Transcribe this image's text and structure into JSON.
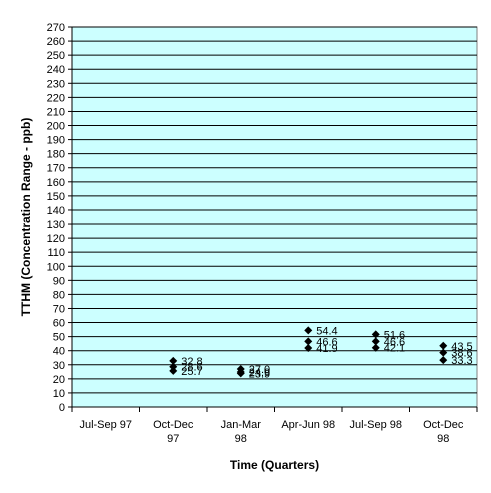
{
  "chart_data": {
    "type": "scatter",
    "title": "",
    "xlabel": "Time (Quarters)",
    "ylabel": "TTHM (Concentration Range - ppb)",
    "ylim": [
      0,
      270
    ],
    "ytick_step": 10,
    "grid": true,
    "legend": "none",
    "plot_background": "#ccffff",
    "gridline_color": "#000000",
    "marker": "diamond",
    "marker_color": "#000000",
    "categories": [
      {
        "label": "Jul-Sep 97",
        "label_line2": ""
      },
      {
        "label": "Oct-Dec",
        "label_line2": "97"
      },
      {
        "label": "Jan-Mar",
        "label_line2": "98"
      },
      {
        "label": "Apr-Jun 98",
        "label_line2": ""
      },
      {
        "label": "Jul-Sep 98",
        "label_line2": ""
      },
      {
        "label": "Oct-Dec",
        "label_line2": "98"
      }
    ],
    "points": [
      {
        "x": 1,
        "y": 32.8,
        "label": "32.8"
      },
      {
        "x": 1,
        "y": 28.6,
        "label": "28.6"
      },
      {
        "x": 1,
        "y": 25.7,
        "label": "25.7"
      },
      {
        "x": 2,
        "y": 27.0,
        "label": "27.0"
      },
      {
        "x": 2,
        "y": 24.9,
        "label": "24.9"
      },
      {
        "x": 2,
        "y": 23.9,
        "label": "23.9"
      },
      {
        "x": 3,
        "y": 54.4,
        "label": "54.4"
      },
      {
        "x": 3,
        "y": 46.6,
        "label": "46.6"
      },
      {
        "x": 3,
        "y": 41.9,
        "label": "41.9"
      },
      {
        "x": 4,
        "y": 51.6,
        "label": "51.6"
      },
      {
        "x": 4,
        "y": 46.6,
        "label": "46.6"
      },
      {
        "x": 4,
        "y": 42.1,
        "label": "42.1"
      },
      {
        "x": 5,
        "y": 43.5,
        "label": "43.5"
      },
      {
        "x": 5,
        "y": 38.6,
        "label": "38.6"
      },
      {
        "x": 5,
        "y": 33.3,
        "label": "33.3"
      }
    ]
  }
}
